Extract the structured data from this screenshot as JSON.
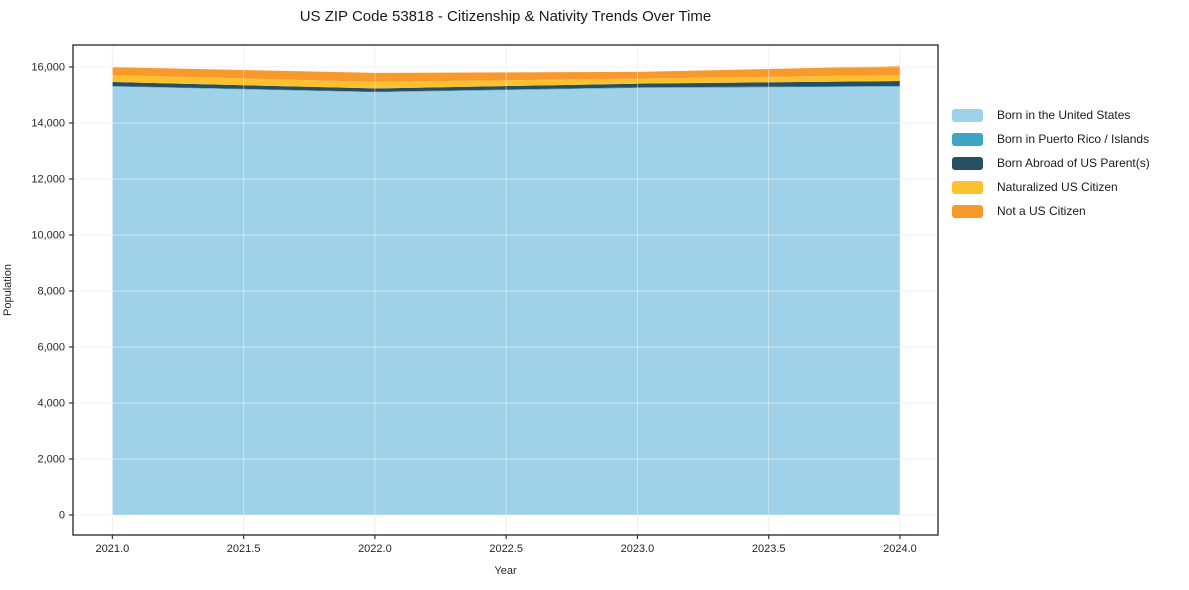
{
  "title": "US ZIP Code 53818 - Citizenship & Nativity Trends Over Time",
  "chart_data": {
    "type": "area",
    "stacked": true,
    "title": "US ZIP Code 53818 - Citizenship & Nativity Trends Over Time",
    "xlabel": "Year",
    "ylabel": "Population",
    "x": [
      2021,
      2022,
      2023,
      2024
    ],
    "series": [
      {
        "name": "Born in the United States",
        "color": "#9FD1E9",
        "values": [
          15300,
          15100,
          15250,
          15300
        ]
      },
      {
        "name": "Born in Puerto Rico / Islands",
        "color": "#3EA5C4",
        "values": [
          20,
          15,
          25,
          20
        ]
      },
      {
        "name": "Born Abroad of US Parent(s)",
        "color": "#264F63",
        "values": [
          145,
          120,
          130,
          180
        ]
      },
      {
        "name": "Naturalized US Citizen",
        "color": "#FDC02F",
        "values": [
          250,
          235,
          180,
          215
        ]
      },
      {
        "name": "Not a US Citizen",
        "color": "#F8992B",
        "values": [
          280,
          320,
          240,
          320
        ]
      }
    ],
    "totals": [
      15995,
      15790,
      15825,
      16035
    ],
    "xlim": [
      2020.85,
      2024.145
    ],
    "ylim": [
      -714,
      16786
    ],
    "xticks": {
      "values": [
        2021.0,
        2021.5,
        2022.0,
        2022.5,
        2023.0,
        2023.5,
        2024.0
      ],
      "labels": [
        "2021.0",
        "2021.5",
        "2022.0",
        "2022.5",
        "2023.0",
        "2023.5",
        "2024.0"
      ]
    },
    "yticks": {
      "values": [
        0,
        2000,
        4000,
        6000,
        8000,
        10000,
        12000,
        14000,
        16000
      ],
      "labels": [
        "0",
        "2,000",
        "4,000",
        "6,000",
        "8,000",
        "10,000",
        "12,000",
        "14,000",
        "16,000"
      ]
    },
    "grid": true,
    "legend_position": "right-outside",
    "colors": {
      "grid": "#e8e8e8",
      "spine": "#333333",
      "tick_text": "#262626"
    }
  }
}
